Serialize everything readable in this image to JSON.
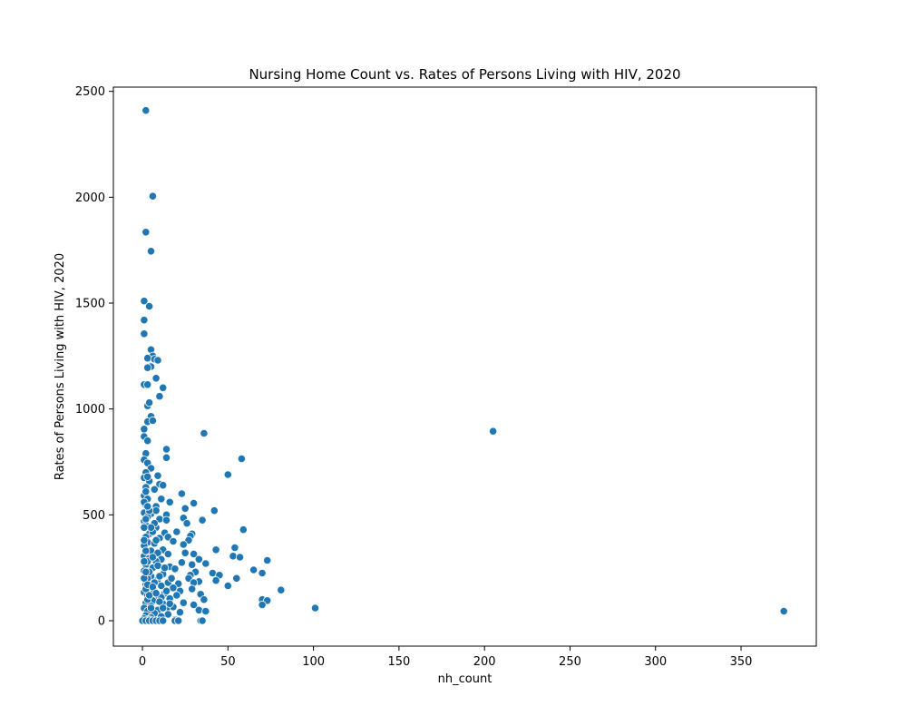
{
  "chart_data": {
    "type": "scatter",
    "title": "Nursing Home Count vs. Rates of Persons Living with HIV, 2020",
    "xlabel": "nh_count",
    "ylabel": "Rates of Persons Living with HIV, 2020",
    "xlim": [
      -17,
      394
    ],
    "ylim": [
      -120,
      2520
    ],
    "xticks": [
      0,
      50,
      100,
      150,
      200,
      250,
      300,
      350
    ],
    "yticks": [
      0,
      500,
      1000,
      1500,
      2000,
      2500
    ],
    "grid": false,
    "legend": "none",
    "marker_color": "#1f77b4",
    "marker_edge": "#ffffff",
    "points": [
      [
        2,
        2410
      ],
      [
        6,
        2005
      ],
      [
        2,
        1835
      ],
      [
        5,
        1745
      ],
      [
        1,
        1510
      ],
      [
        4,
        1485
      ],
      [
        1,
        1420
      ],
      [
        1,
        1355
      ],
      [
        5,
        1280
      ],
      [
        6,
        1250
      ],
      [
        3,
        1240
      ],
      [
        7,
        1235
      ],
      [
        9,
        1230
      ],
      [
        5,
        1200
      ],
      [
        3,
        1195
      ],
      [
        8,
        1145
      ],
      [
        1,
        1115
      ],
      [
        3,
        1115
      ],
      [
        12,
        1100
      ],
      [
        10,
        1060
      ],
      [
        3,
        1015
      ],
      [
        4,
        1030
      ],
      [
        5,
        965
      ],
      [
        3,
        940
      ],
      [
        6,
        945
      ],
      [
        1,
        905
      ],
      [
        36,
        885
      ],
      [
        205,
        895
      ],
      [
        1,
        870
      ],
      [
        3,
        850
      ],
      [
        14,
        810
      ],
      [
        2,
        790
      ],
      [
        14,
        770
      ],
      [
        58,
        765
      ],
      [
        1,
        760
      ],
      [
        3,
        745
      ],
      [
        5,
        720
      ],
      [
        2,
        700
      ],
      [
        50,
        690
      ],
      [
        9,
        685
      ],
      [
        1,
        675
      ],
      [
        4,
        660
      ],
      [
        10,
        645
      ],
      [
        12,
        640
      ],
      [
        2,
        630
      ],
      [
        7,
        620
      ],
      [
        23,
        600
      ],
      [
        1,
        590
      ],
      [
        3,
        575
      ],
      [
        11,
        575
      ],
      [
        16,
        560
      ],
      [
        30,
        555
      ],
      [
        2,
        545
      ],
      [
        8,
        540
      ],
      [
        25,
        530
      ],
      [
        42,
        520
      ],
      [
        1,
        510
      ],
      [
        5,
        505
      ],
      [
        14,
        500
      ],
      [
        3,
        490
      ],
      [
        24,
        485
      ],
      [
        10,
        480
      ],
      [
        14,
        475
      ],
      [
        35,
        475
      ],
      [
        1,
        470
      ],
      [
        26,
        460
      ],
      [
        2,
        450
      ],
      [
        8,
        440
      ],
      [
        59,
        430
      ],
      [
        20,
        420
      ],
      [
        13,
        415
      ],
      [
        4,
        410
      ],
      [
        29,
        410
      ],
      [
        28,
        400
      ],
      [
        2,
        395
      ],
      [
        15,
        395
      ],
      [
        10,
        390
      ],
      [
        27,
        380
      ],
      [
        18,
        375
      ],
      [
        3,
        370
      ],
      [
        7,
        365
      ],
      [
        24,
        360
      ],
      [
        1,
        355
      ],
      [
        54,
        345
      ],
      [
        43,
        335
      ],
      [
        12,
        335
      ],
      [
        5,
        330
      ],
      [
        9,
        320
      ],
      [
        25,
        320
      ],
      [
        15,
        315
      ],
      [
        30,
        315
      ],
      [
        1,
        305
      ],
      [
        53,
        305
      ],
      [
        57,
        300
      ],
      [
        4,
        295
      ],
      [
        11,
        290
      ],
      [
        33,
        290
      ],
      [
        73,
        285
      ],
      [
        8,
        280
      ],
      [
        23,
        275
      ],
      [
        37,
        270
      ],
      [
        2,
        265
      ],
      [
        29,
        265
      ],
      [
        16,
        255
      ],
      [
        6,
        250
      ],
      [
        19,
        245
      ],
      [
        65,
        240
      ],
      [
        1,
        235
      ],
      [
        31,
        230
      ],
      [
        70,
        225
      ],
      [
        41,
        225
      ],
      [
        12,
        220
      ],
      [
        28,
        215
      ],
      [
        45,
        215
      ],
      [
        5,
        210
      ],
      [
        3,
        200
      ],
      [
        27,
        200
      ],
      [
        55,
        200
      ],
      [
        9,
        195
      ],
      [
        43,
        190
      ],
      [
        33,
        185
      ],
      [
        15,
        180
      ],
      [
        30,
        180
      ],
      [
        21,
        175
      ],
      [
        2,
        170
      ],
      [
        11,
        165
      ],
      [
        50,
        165
      ],
      [
        4,
        160
      ],
      [
        18,
        155
      ],
      [
        29,
        150
      ],
      [
        81,
        145
      ],
      [
        7,
        140
      ],
      [
        22,
        140
      ],
      [
        1,
        135
      ],
      [
        13,
        130
      ],
      [
        34,
        125
      ],
      [
        3,
        120
      ],
      [
        20,
        120
      ],
      [
        9,
        110
      ],
      [
        16,
        105
      ],
      [
        36,
        100
      ],
      [
        70,
        100
      ],
      [
        73,
        95
      ],
      [
        6,
        95
      ],
      [
        24,
        85
      ],
      [
        2,
        85
      ],
      [
        12,
        80
      ],
      [
        30,
        75
      ],
      [
        70,
        75
      ],
      [
        5,
        70
      ],
      [
        18,
        65
      ],
      [
        101,
        60
      ],
      [
        1,
        60
      ],
      [
        14,
        55
      ],
      [
        33,
        50
      ],
      [
        9,
        50
      ],
      [
        375,
        45
      ],
      [
        37,
        45
      ],
      [
        3,
        45
      ],
      [
        22,
        40
      ],
      [
        7,
        35
      ],
      [
        15,
        30
      ],
      [
        2,
        25
      ],
      [
        11,
        20
      ],
      [
        5,
        15
      ],
      [
        1,
        10
      ],
      [
        19,
        5
      ],
      [
        4,
        5
      ],
      [
        0,
        0
      ],
      [
        2,
        0
      ],
      [
        4,
        0
      ],
      [
        6,
        0
      ],
      [
        8,
        0
      ],
      [
        10,
        0
      ],
      [
        12,
        0
      ],
      [
        19,
        0
      ],
      [
        21,
        0
      ],
      [
        34,
        0
      ],
      [
        35,
        0
      ],
      [
        1,
        380
      ],
      [
        2,
        330
      ],
      [
        3,
        280
      ],
      [
        4,
        230
      ],
      [
        6,
        300
      ],
      [
        7,
        180
      ],
      [
        8,
        380
      ],
      [
        9,
        260
      ],
      [
        10,
        210
      ],
      [
        11,
        110
      ],
      [
        13,
        250
      ],
      [
        1,
        200
      ],
      [
        2,
        150
      ],
      [
        3,
        100
      ],
      [
        5,
        60
      ],
      [
        6,
        420
      ],
      [
        7,
        460
      ],
      [
        8,
        520
      ],
      [
        1,
        560
      ],
      [
        2,
        610
      ],
      [
        3,
        680
      ],
      [
        4,
        520
      ],
      [
        5,
        440
      ],
      [
        1,
        440
      ],
      [
        2,
        480
      ],
      [
        3,
        540
      ],
      [
        1,
        280
      ],
      [
        2,
        230
      ],
      [
        3,
        170
      ],
      [
        4,
        120
      ],
      [
        6,
        160
      ],
      [
        8,
        130
      ],
      [
        10,
        90
      ],
      [
        12,
        60
      ],
      [
        14,
        140
      ],
      [
        16,
        80
      ],
      [
        17,
        200
      ]
    ]
  }
}
